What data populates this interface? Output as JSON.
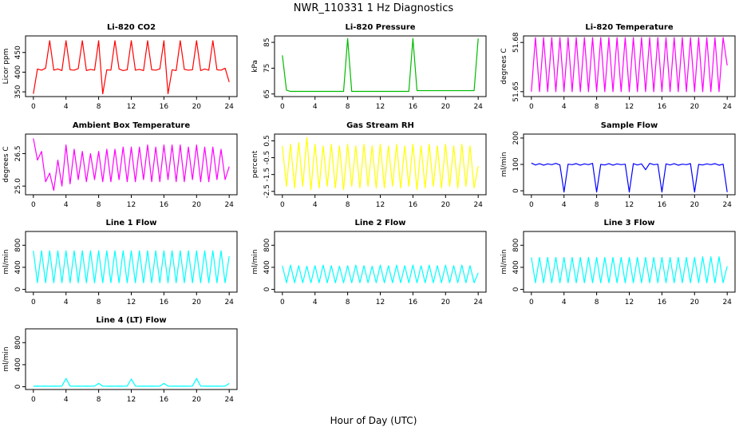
{
  "title": "NWR_110331  1 Hz Diagnostics",
  "xlabel": "Hour of Day (UTC)",
  "chart_data": [
    {
      "type": "line",
      "title": "Li-820 CO2",
      "ylabel": "Licor ppm",
      "color": "#ff0000",
      "xlim": [
        -0.96,
        24.96
      ],
      "xticks": [
        0,
        4,
        8,
        12,
        16,
        20,
        24
      ],
      "ylim": [
        338,
        492
      ],
      "yticks": [
        350,
        400,
        450
      ],
      "x": [
        0,
        0.5,
        1,
        1.5,
        2,
        2.5,
        3,
        3.5,
        4,
        4.5,
        5,
        5.5,
        6,
        6.5,
        7,
        7.5,
        8,
        8.5,
        9,
        9.5,
        10,
        10.5,
        11,
        11.5,
        12,
        12.5,
        13,
        13.5,
        14,
        14.5,
        15,
        15.5,
        16,
        16.5,
        17,
        17.5,
        18,
        18.5,
        19,
        19.5,
        20,
        20.5,
        21,
        21.5,
        22,
        22.5,
        23,
        23.5,
        24
      ],
      "values": [
        345,
        408,
        405,
        410,
        480,
        405,
        408,
        404,
        480,
        406,
        405,
        409,
        480,
        404,
        407,
        405,
        480,
        345,
        406,
        405,
        480,
        408,
        404,
        406,
        480,
        405,
        407,
        404,
        480,
        406,
        405,
        408,
        480,
        345,
        406,
        404,
        480,
        407,
        405,
        406,
        480,
        404,
        408,
        405,
        480,
        406,
        405,
        410,
        375
      ]
    },
    {
      "type": "line",
      "title": "Li-820 Pressure",
      "ylabel": "kPa",
      "color": "#00bb00",
      "xlim": [
        -0.96,
        24.96
      ],
      "xticks": [
        0,
        4,
        8,
        12,
        16,
        20,
        24
      ],
      "ylim": [
        64,
        87.5
      ],
      "yticks": [
        65,
        75,
        85
      ],
      "x": [
        0,
        0.5,
        1,
        1.5,
        2,
        2.5,
        3,
        3.5,
        4,
        4.5,
        5,
        5.5,
        6,
        6.5,
        7,
        7.5,
        8,
        8.5,
        9,
        9.5,
        10,
        10.5,
        11,
        11.5,
        12,
        12.5,
        13,
        13.5,
        14,
        14.5,
        15,
        15.5,
        16,
        16.5,
        17,
        17.5,
        18,
        18.5,
        19,
        19.5,
        20,
        20.5,
        21,
        21.5,
        22,
        22.5,
        23,
        23.5,
        24
      ],
      "values": [
        80,
        66.5,
        66,
        66,
        66,
        66,
        66,
        66,
        66,
        66,
        66,
        66,
        66,
        66,
        66,
        66,
        86.5,
        66,
        66,
        66,
        66,
        66,
        66,
        66,
        66,
        66,
        66,
        66,
        66,
        66,
        66,
        66,
        86.5,
        66.3,
        66.3,
        66.3,
        66.3,
        66.3,
        66.3,
        66.3,
        66.3,
        66.3,
        66.3,
        66.3,
        66.3,
        66.3,
        66.3,
        66.3,
        86.5
      ]
    },
    {
      "type": "line",
      "title": "Li-820 Temperature",
      "ylabel": "degrees C",
      "color": "#ff00ff",
      "xlim": [
        -0.96,
        24.96
      ],
      "xticks": [
        0,
        4,
        8,
        12,
        16,
        20,
        24
      ],
      "ylim": [
        51.647,
        51.684
      ],
      "yticks": [
        51.65,
        51.68
      ],
      "x": [
        0,
        0.5,
        1,
        1.5,
        2,
        2.5,
        3,
        3.5,
        4,
        4.5,
        5,
        5.5,
        6,
        6.5,
        7,
        7.5,
        8,
        8.5,
        9,
        9.5,
        10,
        10.5,
        11,
        11.5,
        12,
        12.5,
        13,
        13.5,
        14,
        14.5,
        15,
        15.5,
        16,
        16.5,
        17,
        17.5,
        18,
        18.5,
        19,
        19.5,
        20,
        20.5,
        21,
        21.5,
        22,
        22.5,
        23,
        23.5,
        24
      ],
      "values": [
        51.65,
        51.683,
        51.65,
        51.683,
        51.65,
        51.683,
        51.65,
        51.683,
        51.65,
        51.683,
        51.65,
        51.683,
        51.65,
        51.683,
        51.65,
        51.683,
        51.65,
        51.683,
        51.65,
        51.683,
        51.65,
        51.683,
        51.65,
        51.683,
        51.65,
        51.683,
        51.65,
        51.683,
        51.65,
        51.683,
        51.65,
        51.683,
        51.65,
        51.683,
        51.65,
        51.683,
        51.65,
        51.683,
        51.65,
        51.683,
        51.65,
        51.683,
        51.65,
        51.683,
        51.65,
        51.683,
        51.65,
        51.683,
        51.666
      ]
    },
    {
      "type": "line",
      "title": "Ambient Box Temperature",
      "ylabel": "degrees C",
      "color": "#ff00ff",
      "xlim": [
        -0.96,
        24.96
      ],
      "xticks": [
        0,
        4,
        8,
        12,
        16,
        20,
        24
      ],
      "ylim": [
        24.6,
        27.4
      ],
      "yticks": [
        {
          "value": 25,
          "label": "25.0"
        },
        26.5
      ],
      "x": [
        0,
        0.5,
        1,
        1.5,
        2,
        2.5,
        3,
        3.5,
        4,
        4.5,
        5,
        5.5,
        6,
        6.5,
        7,
        7.5,
        8,
        8.5,
        9,
        9.5,
        10,
        10.5,
        11,
        11.5,
        12,
        12.5,
        13,
        13.5,
        14,
        14.5,
        15,
        15.5,
        16,
        16.5,
        17,
        17.5,
        18,
        18.5,
        19,
        19.5,
        20,
        20.5,
        21,
        21.5,
        22,
        22.5,
        23,
        23.5,
        24
      ],
      "values": [
        27.2,
        26.2,
        26.6,
        25.2,
        25.6,
        24.8,
        26.2,
        25.0,
        26.9,
        25.1,
        26.7,
        25.3,
        26.6,
        25.2,
        26.5,
        25.3,
        26.6,
        25.2,
        26.7,
        25.2,
        26.7,
        25.3,
        26.8,
        25.2,
        26.8,
        25.2,
        26.8,
        25.3,
        26.9,
        25.2,
        26.8,
        25.2,
        26.9,
        25.3,
        26.9,
        25.2,
        26.9,
        25.2,
        26.8,
        25.3,
        26.9,
        25.2,
        26.8,
        25.2,
        26.8,
        25.3,
        26.7,
        25.3,
        25.9
      ]
    },
    {
      "type": "line",
      "title": "Gas Stream RH",
      "ylabel": "percent",
      "color": "#ffff00",
      "xlim": [
        -0.96,
        24.96
      ],
      "xticks": [
        0,
        4,
        8,
        12,
        16,
        20,
        24
      ],
      "ylim": [
        -2.7,
        0.9
      ],
      "yticks": [
        -2.5,
        -1.5,
        -0.5,
        0.5
      ],
      "x": [
        0,
        0.5,
        1,
        1.5,
        2,
        2.5,
        3,
        3.5,
        4,
        4.5,
        5,
        5.5,
        6,
        6.5,
        7,
        7.5,
        8,
        8.5,
        9,
        9.5,
        10,
        10.5,
        11,
        11.5,
        12,
        12.5,
        13,
        13.5,
        14,
        14.5,
        15,
        15.5,
        16,
        16.5,
        17,
        17.5,
        18,
        18.5,
        19,
        19.5,
        20,
        20.5,
        21,
        21.5,
        22,
        22.5,
        23,
        23.5,
        24
      ],
      "values": [
        0.2,
        -2.2,
        0.3,
        -2.3,
        0.4,
        -2.2,
        0.7,
        -2.4,
        0.3,
        -2.3,
        0.2,
        -2.2,
        0.3,
        -2.3,
        0.2,
        -2.4,
        0.3,
        -2.2,
        0.2,
        -2.3,
        0.3,
        -2.2,
        0.2,
        -2.3,
        0.3,
        -2.3,
        0.2,
        -2.2,
        0.3,
        -2.3,
        0.2,
        -2.2,
        0.3,
        -2.4,
        0.2,
        -2.3,
        0.3,
        -2.2,
        0.2,
        -2.3,
        0.3,
        -2.2,
        0.2,
        -2.3,
        0.3,
        -2.2,
        0.2,
        -2.3,
        -1.0
      ]
    },
    {
      "type": "line",
      "title": "Sample Flow",
      "ylabel": "ml/min",
      "color": "#0000ff",
      "xlim": [
        -0.96,
        24.96
      ],
      "xticks": [
        0,
        4,
        8,
        12,
        16,
        20,
        24
      ],
      "ylim": [
        -15,
        215
      ],
      "yticks": [
        0,
        100,
        200
      ],
      "x": [
        0,
        0.5,
        1,
        1.5,
        2,
        2.5,
        3,
        3.5,
        4,
        4.5,
        5,
        5.5,
        6,
        6.5,
        7,
        7.5,
        8,
        8.5,
        9,
        9.5,
        10,
        10.5,
        11,
        11.5,
        12,
        12.5,
        13,
        13.5,
        14,
        14.5,
        15,
        15.5,
        16,
        16.5,
        17,
        17.5,
        18,
        18.5,
        19,
        19.5,
        20,
        20.5,
        21,
        21.5,
        22,
        22.5,
        23,
        23.5,
        24
      ],
      "values": [
        105,
        98,
        103,
        97,
        102,
        99,
        104,
        98,
        -5,
        101,
        99,
        103,
        97,
        102,
        99,
        104,
        -5,
        100,
        98,
        103,
        97,
        102,
        99,
        101,
        -5,
        103,
        98,
        102,
        80,
        104,
        99,
        101,
        -5,
        102,
        98,
        103,
        97,
        101,
        99,
        103,
        -5,
        100,
        98,
        102,
        99,
        103,
        97,
        101,
        -5
      ]
    },
    {
      "type": "line",
      "title": "Line 1 Flow",
      "ylabel": "ml/min",
      "color": "#00ffff",
      "xlim": [
        -0.96,
        24.96
      ],
      "xticks": [
        0,
        4,
        8,
        12,
        16,
        20,
        24
      ],
      "ylim": [
        -50,
        1050
      ],
      "yticks": [
        0,
        400,
        800
      ],
      "x": [
        0,
        0.5,
        1,
        1.5,
        2,
        2.5,
        3,
        3.5,
        4,
        4.5,
        5,
        5.5,
        6,
        6.5,
        7,
        7.5,
        8,
        8.5,
        9,
        9.5,
        10,
        10.5,
        11,
        11.5,
        12,
        12.5,
        13,
        13.5,
        14,
        14.5,
        15,
        15.5,
        16,
        16.5,
        17,
        17.5,
        18,
        18.5,
        19,
        19.5,
        20,
        20.5,
        21,
        21.5,
        22,
        22.5,
        23,
        23.5,
        24
      ],
      "values": [
        700,
        120,
        700,
        120,
        700,
        120,
        700,
        120,
        700,
        120,
        700,
        120,
        700,
        120,
        700,
        120,
        700,
        120,
        700,
        120,
        700,
        120,
        700,
        120,
        700,
        120,
        700,
        120,
        700,
        120,
        700,
        120,
        700,
        120,
        700,
        120,
        700,
        120,
        700,
        120,
        700,
        120,
        700,
        120,
        700,
        120,
        700,
        120,
        600
      ]
    },
    {
      "type": "line",
      "title": "Line 2 Flow",
      "ylabel": "ml/min",
      "color": "#00ffff",
      "xlim": [
        -0.96,
        24.96
      ],
      "xticks": [
        0,
        4,
        8,
        12,
        16,
        20,
        24
      ],
      "ylim": [
        -50,
        1050
      ],
      "yticks": [
        0,
        400,
        800
      ],
      "x": [
        0,
        0.5,
        1,
        1.5,
        2,
        2.5,
        3,
        3.5,
        4,
        4.5,
        5,
        5.5,
        6,
        6.5,
        7,
        7.5,
        8,
        8.5,
        9,
        9.5,
        10,
        10.5,
        11,
        11.5,
        12,
        12.5,
        13,
        13.5,
        14,
        14.5,
        15,
        15.5,
        16,
        16.5,
        17,
        17.5,
        18,
        18.5,
        19,
        19.5,
        20,
        20.5,
        21,
        21.5,
        22,
        22.5,
        23,
        23.5,
        24
      ],
      "values": [
        430,
        120,
        440,
        120,
        430,
        120,
        420,
        120,
        430,
        120,
        440,
        120,
        430,
        120,
        420,
        120,
        430,
        120,
        440,
        120,
        430,
        120,
        420,
        120,
        440,
        120,
        430,
        120,
        440,
        120,
        430,
        120,
        440,
        120,
        430,
        120,
        440,
        120,
        430,
        120,
        440,
        120,
        430,
        120,
        440,
        120,
        430,
        120,
        300
      ]
    },
    {
      "type": "line",
      "title": "Line 3 Flow",
      "ylabel": "ml/min",
      "color": "#00ffff",
      "xlim": [
        -0.96,
        24.96
      ],
      "xticks": [
        0,
        4,
        8,
        12,
        16,
        20,
        24
      ],
      "ylim": [
        -50,
        1050
      ],
      "yticks": [
        0,
        400,
        800
      ],
      "x": [
        0,
        0.5,
        1,
        1.5,
        2,
        2.5,
        3,
        3.5,
        4,
        4.5,
        5,
        5.5,
        6,
        6.5,
        7,
        7.5,
        8,
        8.5,
        9,
        9.5,
        10,
        10.5,
        11,
        11.5,
        12,
        12.5,
        13,
        13.5,
        14,
        14.5,
        15,
        15.5,
        16,
        16.5,
        17,
        17.5,
        18,
        18.5,
        19,
        19.5,
        20,
        20.5,
        21,
        21.5,
        22,
        22.5,
        23,
        23.5,
        24
      ],
      "values": [
        580,
        120,
        580,
        120,
        580,
        120,
        580,
        120,
        580,
        120,
        580,
        120,
        580,
        120,
        580,
        120,
        580,
        120,
        580,
        120,
        580,
        120,
        580,
        120,
        580,
        120,
        580,
        120,
        580,
        120,
        580,
        120,
        580,
        120,
        580,
        120,
        580,
        120,
        580,
        120,
        580,
        120,
        590,
        120,
        590,
        120,
        590,
        120,
        420
      ]
    },
    {
      "type": "line",
      "title": "Line 4 (LT) Flow",
      "ylabel": "ml/min",
      "color": "#00ffff",
      "xlim": [
        -0.96,
        24.96
      ],
      "xticks": [
        0,
        4,
        8,
        12,
        16,
        20,
        24
      ],
      "ylim": [
        -50,
        1050
      ],
      "yticks": [
        0,
        400,
        800
      ],
      "x": [
        0,
        0.5,
        1,
        1.5,
        2,
        2.5,
        3,
        3.5,
        4,
        4.5,
        5,
        5.5,
        6,
        6.5,
        7,
        7.5,
        8,
        8.5,
        9,
        9.5,
        10,
        10.5,
        11,
        11.5,
        12,
        12.5,
        13,
        13.5,
        14,
        14.5,
        15,
        15.5,
        16,
        16.5,
        17,
        17.5,
        18,
        18.5,
        19,
        19.5,
        20,
        20.5,
        21,
        21.5,
        22,
        22.5,
        23,
        23.5,
        24
      ],
      "values": [
        10,
        12,
        10,
        12,
        10,
        12,
        10,
        12,
        150,
        12,
        10,
        12,
        10,
        12,
        10,
        12,
        60,
        12,
        10,
        12,
        10,
        12,
        10,
        12,
        140,
        12,
        10,
        12,
        10,
        12,
        10,
        12,
        60,
        12,
        10,
        12,
        10,
        12,
        10,
        12,
        150,
        12,
        10,
        12,
        10,
        12,
        10,
        12,
        60
      ]
    }
  ]
}
